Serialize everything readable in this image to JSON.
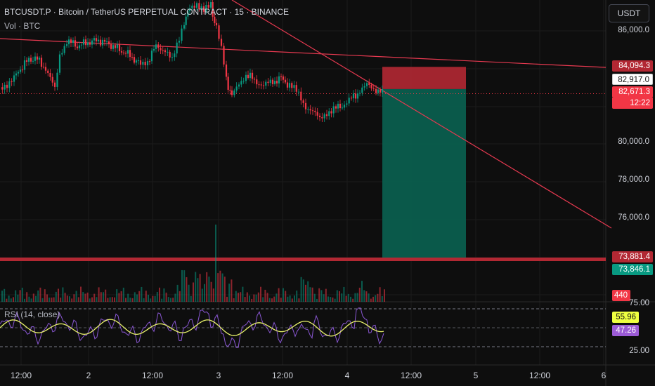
{
  "header": {
    "symbol_line": "BTCUSDT.P · Bitcoin / TetherUS PERPETUAL CONTRACT · 15 · BINANCE",
    "volume_line": "Vol · BTC"
  },
  "currency_button": "USDT",
  "price_axis": {
    "ticks": [
      "86,000.0",
      "80,000.0",
      "78,000.0",
      "76,000.0"
    ]
  },
  "price_tags": {
    "target_high": {
      "text": "84,094.3",
      "color": "#b22833"
    },
    "entry": {
      "text": "82,917.0",
      "color": "#ffffff"
    },
    "last_price": {
      "text": "82,671.3",
      "color": "#f23645"
    },
    "countdown": {
      "text": "12:22",
      "color": "#f23645"
    },
    "stop_line": {
      "text": "73,881.4",
      "color": "#b22833"
    },
    "take_profit": {
      "text": "73,846.1",
      "color": "#089981"
    },
    "volume": {
      "text": "440",
      "color": "#f23645"
    }
  },
  "rsi": {
    "title": "RSI (14, close)",
    "axis_ticks": [
      "75.00",
      "25.00"
    ],
    "value": {
      "text": "55.96",
      "color": "#eeff41"
    },
    "ma_value": {
      "text": "47.26",
      "color": "#9c5bd6"
    }
  },
  "time_axis": {
    "labels": [
      "12:00",
      "2",
      "12:00",
      "3",
      "12:00",
      "4",
      "12:00",
      "5",
      "12:00",
      "6"
    ]
  },
  "colors": {
    "up_candle": "#089981",
    "down_candle": "#f23645",
    "trendline": "#e63950",
    "stop_zone": "#b22833",
    "profit_zone": "#0b5e4e",
    "rsi_line": "#8a57d4",
    "rsi_ma": "#e7f06a"
  }
}
